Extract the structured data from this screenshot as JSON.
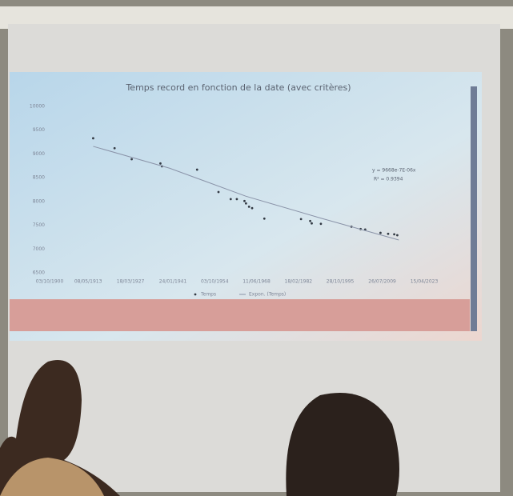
{
  "chart_data": {
    "type": "scatter",
    "title": "Temps record en fonction de la date (avec critères)",
    "annotation": [
      "y = 9668e-7E-06x",
      "R² = 0.9394"
    ],
    "xlim": [
      1900.75,
      2023.29
    ],
    "xticks": [
      {
        "value": 1900.75,
        "label": "03/10/1900"
      },
      {
        "value": 1913.35,
        "label": "08/05/1913"
      },
      {
        "value": 1927.21,
        "label": "18/03/1927"
      },
      {
        "value": 1941.07,
        "label": "24/01/1941"
      },
      {
        "value": 1954.75,
        "label": "03/10/1954"
      },
      {
        "value": 1968.44,
        "label": "11/06/1968"
      },
      {
        "value": 1982.13,
        "label": "18/02/1982"
      },
      {
        "value": 1995.82,
        "label": "28/10/1995"
      },
      {
        "value": 2009.56,
        "label": "26/07/2009"
      },
      {
        "value": 2023.29,
        "label": "15/04/2023"
      }
    ],
    "ylim": [
      6500,
      10000
    ],
    "yticks": [
      6500,
      7000,
      7500,
      8000,
      8500,
      9000,
      9500,
      10000
    ],
    "series": [
      {
        "name": "Temps",
        "color": "#333a44",
        "x": [
          1915,
          1922,
          1927.6,
          1937,
          1937.5,
          1949,
          1956,
          1960,
          1962,
          1964.5,
          1965,
          1966,
          1967,
          1971,
          1983,
          1986,
          1986.5,
          1989.5,
          1999.5,
          2002.5,
          2004,
          2009,
          2011.5,
          2013.5,
          2014.5
        ],
        "values": [
          9330,
          9120,
          8890,
          8800,
          8740,
          8670,
          8200,
          8050,
          8050,
          8010,
          7960,
          7890,
          7860,
          7640,
          7630,
          7590,
          7540,
          7530,
          7470,
          7420,
          7410,
          7340,
          7320,
          7310,
          7290
        ]
      },
      {
        "name": "Expon. (Temps)",
        "color": "#8a93a8",
        "x": [
          1915,
          1940,
          1965,
          1990,
          2015
        ],
        "values": [
          9160,
          8700,
          8110,
          7640,
          7190
        ]
      }
    ]
  }
}
